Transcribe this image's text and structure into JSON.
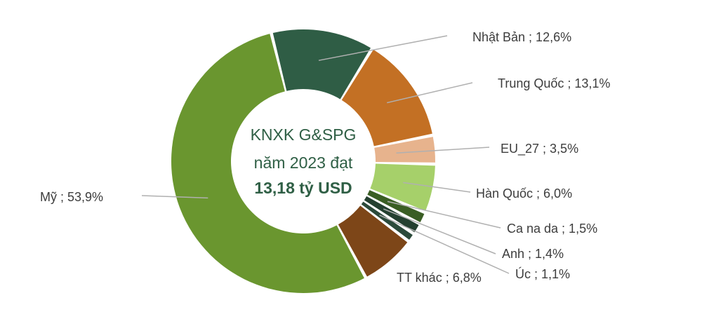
{
  "chart_data": {
    "type": "pie",
    "donut": true,
    "center_text": {
      "line1": "KNXK G&SPG",
      "line2": "năm 2023 đạt",
      "line3": "13,18 tỷ USD"
    },
    "slices": [
      {
        "category": "Nhật Bản",
        "value": 12.6,
        "label": "Nhật Bản ; 12,6%",
        "color": "#2f5d45"
      },
      {
        "category": "Trung Quốc",
        "value": 13.1,
        "label": "Trung Quốc ; 13,1%",
        "color": "#c37024"
      },
      {
        "category": "EU_27",
        "value": 3.5,
        "label": "EU_27 ; 3,5%",
        "color": "#e7b38d"
      },
      {
        "category": "Hàn Quốc",
        "value": 6.0,
        "label": "Hàn Quốc ; 6,0%",
        "color": "#a6d06a"
      },
      {
        "category": "Ca na da",
        "value": 1.5,
        "label": "Ca na da ; 1,5%",
        "color": "#3a5e24"
      },
      {
        "category": "Anh",
        "value": 1.4,
        "label": "Anh ; 1,4%",
        "color": "#244030"
      },
      {
        "category": "Úc",
        "value": 1.1,
        "label": "Úc ; 1,1%",
        "color": "#2b4a3a"
      },
      {
        "category": "TT khác",
        "value": 6.8,
        "label": "TT khác ; 6,8%",
        "color": "#7d4618"
      },
      {
        "category": "Mỹ",
        "value": 53.9,
        "label": "Mỹ ; 53,9%",
        "color": "#6a962f"
      }
    ]
  }
}
